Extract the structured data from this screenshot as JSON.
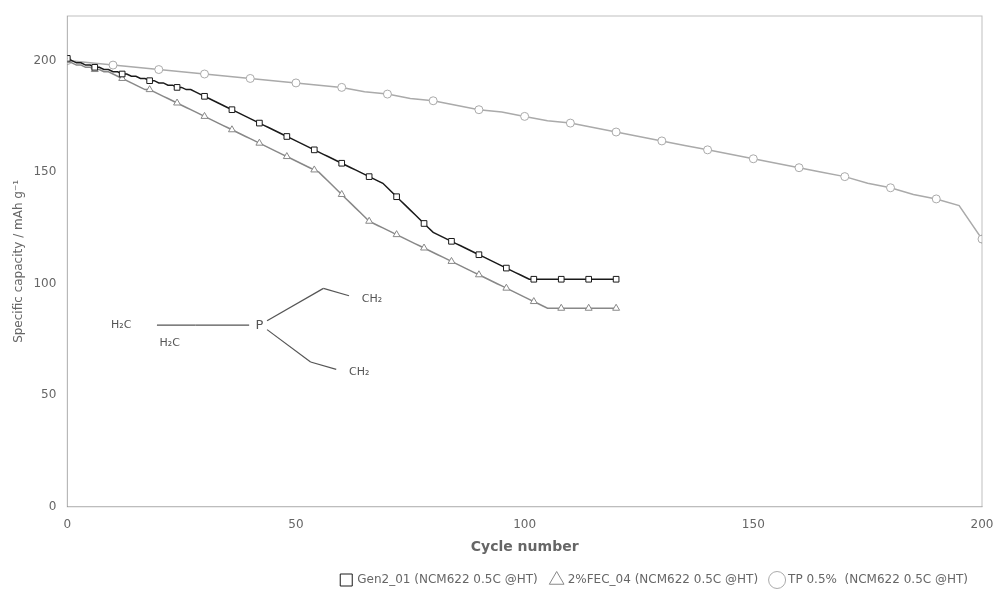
{
  "chart_data": {
    "type": "line",
    "xlabel": "Cycle number",
    "ylabel": "Specific capacity / mAh g⁻¹",
    "xlim": [
      0,
      200
    ],
    "ylim": [
      0,
      220
    ],
    "xticks": [
      0,
      50,
      100,
      150,
      200
    ],
    "yticks": [
      0,
      50,
      100,
      150,
      200
    ],
    "grid": false,
    "legend": "lower right",
    "annotations": [
      "P",
      "CH₂",
      "H₂C",
      "CH₂",
      "H₂C"
    ],
    "series": [
      {
        "name": "Gen2_01 (NCM622 0.5C @HT)",
        "color": "#1a1a1a",
        "marker": "square",
        "x": [
          0,
          1,
          2,
          3,
          4,
          5,
          6,
          7,
          8,
          9,
          10,
          11,
          12,
          13,
          14,
          15,
          16,
          17,
          18,
          19,
          20,
          21,
          22,
          23,
          24,
          25,
          26,
          27,
          28,
          29,
          30,
          31,
          32,
          33,
          34,
          35,
          36,
          37,
          38,
          39,
          40,
          41,
          42,
          43,
          44,
          45,
          46,
          47,
          48,
          49,
          50,
          51,
          52,
          53,
          54,
          55,
          56,
          57,
          58,
          59,
          60,
          61,
          62,
          63,
          64,
          65,
          66,
          67,
          68,
          69,
          70,
          71,
          72,
          73,
          74,
          75,
          76,
          77,
          78,
          79,
          80,
          81,
          82,
          83,
          84,
          85,
          86,
          87,
          88,
          89,
          90,
          91,
          92,
          93,
          94,
          95,
          96,
          97,
          98,
          99,
          100,
          101,
          102,
          103,
          104,
          105,
          106,
          107,
          108,
          109,
          110,
          111,
          112,
          113,
          114,
          115,
          116,
          117,
          118,
          119,
          120
        ],
        "values": [
          201,
          200,
          199,
          199,
          198,
          198,
          197,
          197,
          196,
          196,
          195,
          195,
          194,
          194,
          193,
          193,
          192,
          192,
          191,
          191,
          190,
          190,
          189,
          189,
          188,
          188,
          187,
          187,
          186,
          185,
          184,
          183,
          182,
          181,
          180,
          179,
          178,
          177,
          176,
          175,
          174,
          173,
          172,
          171,
          170,
          169,
          168,
          167,
          166,
          165,
          164,
          163,
          162,
          161,
          160,
          159,
          158,
          157,
          156,
          155,
          154,
          153,
          152,
          151,
          150,
          149,
          148,
          147,
          146,
          145,
          143,
          141,
          139,
          137,
          135,
          133,
          131,
          129,
          127,
          125,
          123,
          122,
          121,
          120,
          119,
          118,
          117,
          116,
          115,
          114,
          113,
          112,
          111,
          110,
          109,
          108,
          107,
          106,
          105,
          104,
          103,
          102,
          102,
          102,
          102,
          102,
          102,
          102,
          102,
          102,
          102,
          102,
          102,
          102,
          102,
          102,
          102,
          102,
          102,
          102,
          102
        ]
      },
      {
        "name": "2%FEC_04 (NCM622 0.5C @HT)",
        "color": "#888888",
        "marker": "triangle",
        "x": [
          0,
          1,
          2,
          3,
          4,
          5,
          6,
          7,
          8,
          9,
          10,
          11,
          12,
          13,
          14,
          15,
          16,
          17,
          18,
          19,
          20,
          21,
          22,
          23,
          24,
          25,
          26,
          27,
          28,
          29,
          30,
          31,
          32,
          33,
          34,
          35,
          36,
          37,
          38,
          39,
          40,
          41,
          42,
          43,
          44,
          45,
          46,
          47,
          48,
          49,
          50,
          51,
          52,
          53,
          54,
          55,
          56,
          57,
          58,
          59,
          60,
          61,
          62,
          63,
          64,
          65,
          66,
          67,
          68,
          69,
          70,
          71,
          72,
          73,
          74,
          75,
          76,
          77,
          78,
          79,
          80,
          81,
          82,
          83,
          84,
          85,
          86,
          87,
          88,
          89,
          90,
          91,
          92,
          93,
          94,
          95,
          96,
          97,
          98,
          99,
          100,
          101,
          102,
          103,
          104,
          105,
          106,
          107,
          108,
          109,
          110,
          111,
          112,
          113,
          114,
          115,
          116,
          117,
          118,
          119,
          120
        ],
        "values": [
          200,
          199,
          198,
          198,
          197,
          197,
          196,
          196,
          195,
          195,
          194,
          193,
          192,
          191,
          190,
          189,
          188,
          187,
          187,
          186,
          185,
          184,
          183,
          182,
          181,
          180,
          179,
          178,
          177,
          176,
          175,
          174,
          173,
          172,
          171,
          170,
          169,
          168,
          167,
          166,
          165,
          164,
          163,
          162,
          161,
          160,
          159,
          158,
          157,
          156,
          155,
          154,
          153,
          152,
          151,
          150,
          148,
          146,
          144,
          142,
          140,
          138,
          136,
          134,
          132,
          130,
          128,
          127,
          126,
          125,
          124,
          123,
          122,
          121,
          120,
          119,
          118,
          117,
          116,
          115,
          114,
          113,
          112,
          111,
          110,
          109,
          108,
          107,
          106,
          105,
          104,
          103,
          102,
          101,
          100,
          99,
          98,
          97,
          96,
          95,
          94,
          93,
          92,
          91,
          90,
          89,
          89,
          89,
          89,
          89,
          89,
          89,
          89,
          89,
          89,
          89,
          89,
          89,
          89,
          89,
          89
        ]
      },
      {
        "name": "TP 0.5%  (NCM622 0.5C @HT)",
        "color": "#aaaaaa",
        "marker": "circle",
        "x": [
          0,
          5,
          10,
          15,
          20,
          25,
          30,
          35,
          40,
          45,
          50,
          55,
          60,
          65,
          70,
          75,
          80,
          85,
          90,
          95,
          100,
          105,
          110,
          115,
          120,
          125,
          130,
          135,
          140,
          145,
          150,
          155,
          160,
          165,
          170,
          175,
          180,
          185,
          190,
          195,
          200
        ],
        "values": [
          200,
          199,
          198,
          197,
          196,
          195,
          194,
          193,
          192,
          191,
          190,
          189,
          188,
          186,
          185,
          183,
          182,
          180,
          178,
          177,
          175,
          173,
          172,
          170,
          168,
          166,
          164,
          162,
          160,
          158,
          156,
          154,
          152,
          150,
          148,
          145,
          143,
          140,
          138,
          135,
          120
        ]
      }
    ]
  }
}
